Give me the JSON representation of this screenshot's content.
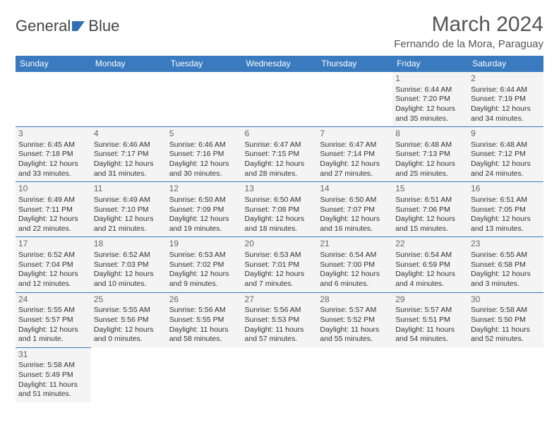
{
  "logo": {
    "part1": "General",
    "part2": "Blue",
    "icon_color": "#2f6fb3"
  },
  "title": "March 2024",
  "location": "Fernando de la Mora, Paraguay",
  "colors": {
    "header_bg": "#3a7bbf",
    "header_fg": "#ffffff",
    "cell_bg": "#f4f4f4",
    "rule": "#3a7bbf",
    "text": "#333333",
    "daynum": "#666666"
  },
  "typography": {
    "title_fontsize": 30,
    "location_fontsize": 15,
    "th_fontsize": 12,
    "cell_fontsize": 10.5,
    "logo_fontsize": 22
  },
  "layout": {
    "cols": 7,
    "rows": 6,
    "col_width_pct": 14.28
  },
  "days_of_week": [
    "Sunday",
    "Monday",
    "Tuesday",
    "Wednesday",
    "Thursday",
    "Friday",
    "Saturday"
  ],
  "cells": [
    {
      "blank": true
    },
    {
      "blank": true
    },
    {
      "blank": true
    },
    {
      "blank": true
    },
    {
      "blank": true
    },
    {
      "day": "1",
      "sunrise": "Sunrise: 6:44 AM",
      "sunset": "Sunset: 7:20 PM",
      "daylight1": "Daylight: 12 hours",
      "daylight2": "and 35 minutes."
    },
    {
      "day": "2",
      "sunrise": "Sunrise: 6:44 AM",
      "sunset": "Sunset: 7:19 PM",
      "daylight1": "Daylight: 12 hours",
      "daylight2": "and 34 minutes."
    },
    {
      "day": "3",
      "sunrise": "Sunrise: 6:45 AM",
      "sunset": "Sunset: 7:18 PM",
      "daylight1": "Daylight: 12 hours",
      "daylight2": "and 33 minutes."
    },
    {
      "day": "4",
      "sunrise": "Sunrise: 6:46 AM",
      "sunset": "Sunset: 7:17 PM",
      "daylight1": "Daylight: 12 hours",
      "daylight2": "and 31 minutes."
    },
    {
      "day": "5",
      "sunrise": "Sunrise: 6:46 AM",
      "sunset": "Sunset: 7:16 PM",
      "daylight1": "Daylight: 12 hours",
      "daylight2": "and 30 minutes."
    },
    {
      "day": "6",
      "sunrise": "Sunrise: 6:47 AM",
      "sunset": "Sunset: 7:15 PM",
      "daylight1": "Daylight: 12 hours",
      "daylight2": "and 28 minutes."
    },
    {
      "day": "7",
      "sunrise": "Sunrise: 6:47 AM",
      "sunset": "Sunset: 7:14 PM",
      "daylight1": "Daylight: 12 hours",
      "daylight2": "and 27 minutes."
    },
    {
      "day": "8",
      "sunrise": "Sunrise: 6:48 AM",
      "sunset": "Sunset: 7:13 PM",
      "daylight1": "Daylight: 12 hours",
      "daylight2": "and 25 minutes."
    },
    {
      "day": "9",
      "sunrise": "Sunrise: 6:48 AM",
      "sunset": "Sunset: 7:12 PM",
      "daylight1": "Daylight: 12 hours",
      "daylight2": "and 24 minutes."
    },
    {
      "day": "10",
      "sunrise": "Sunrise: 6:49 AM",
      "sunset": "Sunset: 7:11 PM",
      "daylight1": "Daylight: 12 hours",
      "daylight2": "and 22 minutes."
    },
    {
      "day": "11",
      "sunrise": "Sunrise: 6:49 AM",
      "sunset": "Sunset: 7:10 PM",
      "daylight1": "Daylight: 12 hours",
      "daylight2": "and 21 minutes."
    },
    {
      "day": "12",
      "sunrise": "Sunrise: 6:50 AM",
      "sunset": "Sunset: 7:09 PM",
      "daylight1": "Daylight: 12 hours",
      "daylight2": "and 19 minutes."
    },
    {
      "day": "13",
      "sunrise": "Sunrise: 6:50 AM",
      "sunset": "Sunset: 7:08 PM",
      "daylight1": "Daylight: 12 hours",
      "daylight2": "and 18 minutes."
    },
    {
      "day": "14",
      "sunrise": "Sunrise: 6:50 AM",
      "sunset": "Sunset: 7:07 PM",
      "daylight1": "Daylight: 12 hours",
      "daylight2": "and 16 minutes."
    },
    {
      "day": "15",
      "sunrise": "Sunrise: 6:51 AM",
      "sunset": "Sunset: 7:06 PM",
      "daylight1": "Daylight: 12 hours",
      "daylight2": "and 15 minutes."
    },
    {
      "day": "16",
      "sunrise": "Sunrise: 6:51 AM",
      "sunset": "Sunset: 7:05 PM",
      "daylight1": "Daylight: 12 hours",
      "daylight2": "and 13 minutes."
    },
    {
      "day": "17",
      "sunrise": "Sunrise: 6:52 AM",
      "sunset": "Sunset: 7:04 PM",
      "daylight1": "Daylight: 12 hours",
      "daylight2": "and 12 minutes."
    },
    {
      "day": "18",
      "sunrise": "Sunrise: 6:52 AM",
      "sunset": "Sunset: 7:03 PM",
      "daylight1": "Daylight: 12 hours",
      "daylight2": "and 10 minutes."
    },
    {
      "day": "19",
      "sunrise": "Sunrise: 6:53 AM",
      "sunset": "Sunset: 7:02 PM",
      "daylight1": "Daylight: 12 hours",
      "daylight2": "and 9 minutes."
    },
    {
      "day": "20",
      "sunrise": "Sunrise: 6:53 AM",
      "sunset": "Sunset: 7:01 PM",
      "daylight1": "Daylight: 12 hours",
      "daylight2": "and 7 minutes."
    },
    {
      "day": "21",
      "sunrise": "Sunrise: 6:54 AM",
      "sunset": "Sunset: 7:00 PM",
      "daylight1": "Daylight: 12 hours",
      "daylight2": "and 6 minutes."
    },
    {
      "day": "22",
      "sunrise": "Sunrise: 6:54 AM",
      "sunset": "Sunset: 6:59 PM",
      "daylight1": "Daylight: 12 hours",
      "daylight2": "and 4 minutes."
    },
    {
      "day": "23",
      "sunrise": "Sunrise: 6:55 AM",
      "sunset": "Sunset: 6:58 PM",
      "daylight1": "Daylight: 12 hours",
      "daylight2": "and 3 minutes."
    },
    {
      "day": "24",
      "sunrise": "Sunrise: 5:55 AM",
      "sunset": "Sunset: 5:57 PM",
      "daylight1": "Daylight: 12 hours",
      "daylight2": "and 1 minute."
    },
    {
      "day": "25",
      "sunrise": "Sunrise: 5:55 AM",
      "sunset": "Sunset: 5:56 PM",
      "daylight1": "Daylight: 12 hours",
      "daylight2": "and 0 minutes."
    },
    {
      "day": "26",
      "sunrise": "Sunrise: 5:56 AM",
      "sunset": "Sunset: 5:55 PM",
      "daylight1": "Daylight: 11 hours",
      "daylight2": "and 58 minutes."
    },
    {
      "day": "27",
      "sunrise": "Sunrise: 5:56 AM",
      "sunset": "Sunset: 5:53 PM",
      "daylight1": "Daylight: 11 hours",
      "daylight2": "and 57 minutes."
    },
    {
      "day": "28",
      "sunrise": "Sunrise: 5:57 AM",
      "sunset": "Sunset: 5:52 PM",
      "daylight1": "Daylight: 11 hours",
      "daylight2": "and 55 minutes."
    },
    {
      "day": "29",
      "sunrise": "Sunrise: 5:57 AM",
      "sunset": "Sunset: 5:51 PM",
      "daylight1": "Daylight: 11 hours",
      "daylight2": "and 54 minutes."
    },
    {
      "day": "30",
      "sunrise": "Sunrise: 5:58 AM",
      "sunset": "Sunset: 5:50 PM",
      "daylight1": "Daylight: 11 hours",
      "daylight2": "and 52 minutes."
    },
    {
      "day": "31",
      "sunrise": "Sunrise: 5:58 AM",
      "sunset": "Sunset: 5:49 PM",
      "daylight1": "Daylight: 11 hours",
      "daylight2": "and 51 minutes."
    },
    {
      "trail": true
    },
    {
      "trail": true
    },
    {
      "trail": true
    },
    {
      "trail": true
    },
    {
      "trail": true
    },
    {
      "trail": true
    }
  ]
}
